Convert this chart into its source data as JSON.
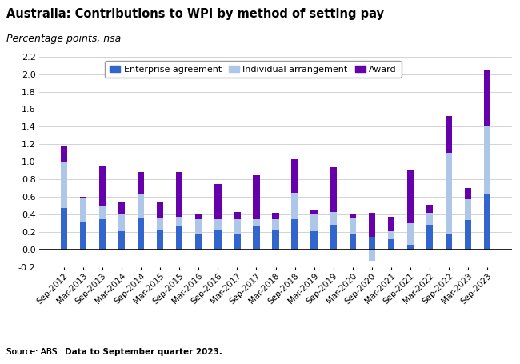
{
  "title": "Australia: Contributions to WPI by method of setting pay",
  "subtitle": "Percentage points, nsa",
  "source_normal": "Source: ABS.  ",
  "source_bold": "Data to September quarter 2023.",
  "labels": [
    "Sep-2012",
    "Mar-2013",
    "Sep-2013",
    "Mar-2014",
    "Sep-2014",
    "Mar-2015",
    "Sep-2015",
    "Mar-2016",
    "Sep-2016",
    "Mar-2017",
    "Sep-2017",
    "Mar-2018",
    "Sep-2018",
    "Mar-2019",
    "Sep-2019",
    "Mar-2020",
    "Sep-2020",
    "Mar-2021",
    "Sep-2021",
    "Mar-2022",
    "Sep-2022",
    "Mar-2023",
    "Sep-2023"
  ],
  "enterprise": [
    0.48,
    0.32,
    0.35,
    0.21,
    0.37,
    0.22,
    0.28,
    0.18,
    0.22,
    0.18,
    0.27,
    0.22,
    0.35,
    0.21,
    0.29,
    0.18,
    0.15,
    0.12,
    0.06,
    0.29,
    0.19,
    0.34,
    0.64
  ],
  "individual": [
    0.52,
    0.27,
    0.15,
    0.19,
    0.27,
    0.14,
    0.1,
    0.17,
    0.13,
    0.17,
    0.08,
    0.13,
    0.3,
    0.19,
    0.14,
    0.18,
    -0.12,
    0.09,
    0.24,
    0.13,
    0.91,
    0.24,
    0.76
  ],
  "award": [
    0.18,
    0.01,
    0.45,
    0.14,
    0.25,
    0.19,
    0.51,
    0.05,
    0.4,
    0.08,
    0.5,
    0.07,
    0.38,
    0.05,
    0.51,
    0.05,
    0.27,
    0.17,
    0.6,
    0.09,
    0.42,
    0.12,
    0.64
  ],
  "enterprise_color": "#3366cc",
  "individual_color": "#aec6e8",
  "award_color": "#6600aa",
  "ylim": [
    -0.2,
    2.2
  ],
  "ytick_vals": [
    -0.2,
    0.0,
    0.2,
    0.4,
    0.6,
    0.8,
    1.0,
    1.2,
    1.4,
    1.6,
    1.8,
    2.0,
    2.2
  ],
  "ytick_labels": [
    "-0.2",
    "0.0",
    "0.2",
    "0.4",
    "0.6",
    "0.8",
    "1.0",
    "1.2",
    "1.4",
    "1.6",
    "1.8",
    "2.0",
    "2.2"
  ],
  "bar_width": 0.35,
  "legend_labels": [
    "Enterprise agreement",
    "Individual arrangement",
    "Award"
  ]
}
